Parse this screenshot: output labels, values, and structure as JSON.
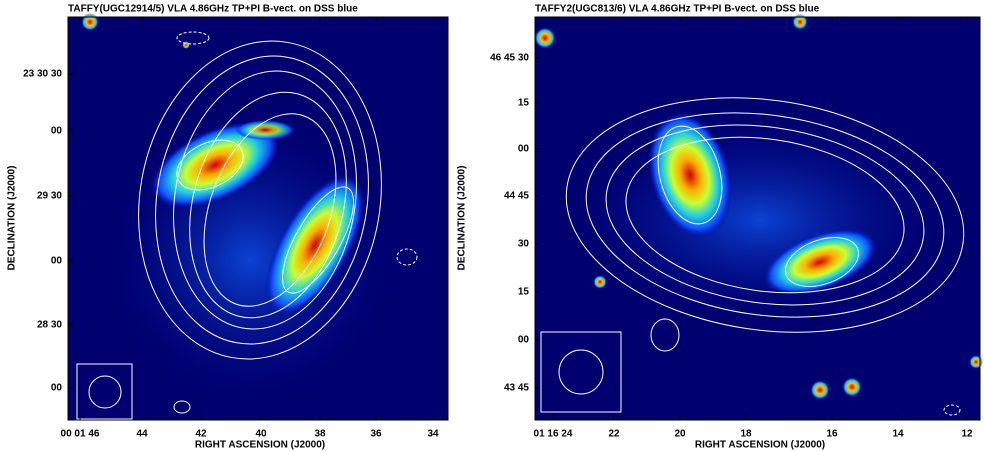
{
  "panels": [
    {
      "title": "TAFFY(UGC12914/5) VLA 4.86GHz TP+PI B-vect. on DSS blue",
      "xlabel": "RIGHT ASCENSION (J2000)",
      "ylabel": "DECLINATION (J2000)",
      "xticks": [
        "00 01 46",
        "44",
        "42",
        "40",
        "38",
        "36",
        "34"
      ],
      "yticks": [
        "23 30 30",
        "00",
        "29 30",
        "00",
        "28 30",
        "00"
      ]
    },
    {
      "title": "TAFFY2(UGC813/6) VLA 4.86GHz TP+PI B-vect. on DSS blue",
      "xlabel": "RIGHT ASCENSION (J2000)",
      "ylabel": "DECLINATION (J2000)",
      "xticks": [
        "01 16 24",
        "22",
        "20",
        "18",
        "16",
        "14",
        "12"
      ],
      "yticks": [
        "46 45 30",
        "15",
        "00",
        "44 45",
        "30",
        "15",
        "00",
        "43 45"
      ]
    }
  ]
}
